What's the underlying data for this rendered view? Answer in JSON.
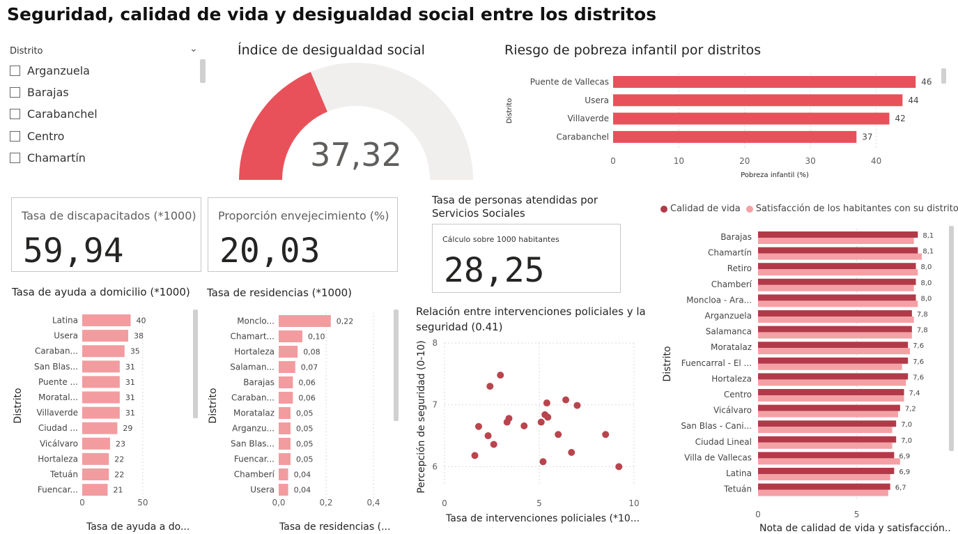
{
  "page_title": "Seguridad, calidad de vida y desigualdad social entre los distritos",
  "colors": {
    "red": "#e8515a",
    "pink": "#f29ca0",
    "maroon": "#b8454d",
    "dark_red": "#b23a48",
    "light_pink": "#f4a1a6",
    "gray": "#f0efee"
  },
  "slicer": {
    "header": "Distrito",
    "items": [
      "Arganzuela",
      "Barajas",
      "Carabanchel",
      "Centro",
      "Chamartín"
    ]
  },
  "gauge": {
    "title": "Índice de desigualdad social",
    "value": 37.32,
    "value_label": "37,32",
    "max": 100
  },
  "cards": {
    "disability": {
      "label": "Tasa de discapacitados (*1000)",
      "value": "59,94"
    },
    "aging": {
      "label": "Proporción envejecimiento (%)",
      "value": "20,03"
    },
    "social": {
      "title": "Tasa de personas atendidas por Servicios Sociales",
      "subtitle": "Cálculo sobre 1000 habitantes",
      "value": "28,25"
    }
  },
  "chart_data": [
    {
      "id": "poverty",
      "type": "bar",
      "orientation": "horizontal",
      "title": "Riesgo de pobreza infantil por distritos",
      "xlabel": "Pobreza infantil (%)",
      "ylabel": "Distrito",
      "categories": [
        "Puente de Vallecas",
        "Usera",
        "Villaverde",
        "Carabanchel"
      ],
      "values": [
        46,
        44,
        42,
        37
      ],
      "labels": [
        "46",
        "44",
        "42",
        "37"
      ],
      "xlim": [
        0,
        50
      ],
      "xticks": [
        0,
        10,
        20,
        30,
        40
      ],
      "xtick_labels": [
        "0",
        "10",
        "20",
        "30",
        "40"
      ]
    },
    {
      "id": "home_help",
      "type": "bar",
      "orientation": "horizontal",
      "title": "Tasa de ayuda a domicilio (*1000)",
      "xlabel": "Tasa de ayuda a do...",
      "ylabel": "Distrito",
      "categories": [
        "Latina",
        "Usera",
        "Caraban...",
        "San Blas...",
        "Puente ...",
        "Moratal...",
        "Villaverde",
        "Ciudad ...",
        "Vicálvaro",
        "Hortaleza",
        "Tetuán",
        "Fuencar..."
      ],
      "values": [
        40,
        38,
        35,
        31,
        31,
        31,
        31,
        29,
        23,
        22,
        22,
        21
      ],
      "labels": [
        "40",
        "38",
        "35",
        "31",
        "31",
        "31",
        "31",
        "29",
        "23",
        "22",
        "22",
        "21"
      ],
      "xlim": [
        0,
        80
      ],
      "xticks": [
        0,
        50
      ],
      "xtick_labels": [
        "0",
        "50"
      ]
    },
    {
      "id": "residences",
      "type": "bar",
      "orientation": "horizontal",
      "title": "Tasa de residencias (*1000)",
      "xlabel": "Tasa de residencias (...",
      "ylabel": "Distrito",
      "categories": [
        "Monclo...",
        "Chamart...",
        "Hortaleza",
        "Salaman...",
        "Barajas",
        "Caraban...",
        "Moratalaz",
        "Arganzu...",
        "San Blas...",
        "Fuencar...",
        "Chamberí",
        "Usera"
      ],
      "values": [
        0.22,
        0.1,
        0.08,
        0.07,
        0.06,
        0.06,
        0.05,
        0.05,
        0.05,
        0.05,
        0.04,
        0.04
      ],
      "labels": [
        "0,22",
        "0,10",
        "0,08",
        "0,07",
        "0,06",
        "0,06",
        "0,05",
        "0,05",
        "0,05",
        "0,05",
        "0,04",
        "0,04"
      ],
      "xlim": [
        0,
        0.5
      ],
      "xticks": [
        0,
        0.2,
        0.4
      ],
      "xtick_labels": [
        "0,0",
        "0,2",
        "0,4"
      ]
    },
    {
      "id": "police",
      "type": "scatter",
      "title": "Relación entre intervenciones policiales y la seguridad (0.41)",
      "xlabel": "Tasa de intervenciones policiales (*10...",
      "ylabel": "Percepción de seguridad (0-10)",
      "xlim": [
        0,
        10
      ],
      "ylim": [
        5.7,
        8
      ],
      "xticks": [
        0,
        5,
        10
      ],
      "yticks": [
        6,
        7,
        8
      ],
      "xtick_labels": [
        "0",
        "5",
        "10"
      ],
      "ytick_labels": [
        "6",
        "7",
        "8"
      ],
      "points": [
        {
          "x": 1.6,
          "y": 6.18
        },
        {
          "x": 1.8,
          "y": 6.65
        },
        {
          "x": 2.3,
          "y": 6.5
        },
        {
          "x": 2.4,
          "y": 7.3
        },
        {
          "x": 2.6,
          "y": 6.36
        },
        {
          "x": 2.95,
          "y": 7.48
        },
        {
          "x": 3.3,
          "y": 6.72
        },
        {
          "x": 3.4,
          "y": 6.78
        },
        {
          "x": 4.2,
          "y": 6.66
        },
        {
          "x": 5.1,
          "y": 6.72
        },
        {
          "x": 5.3,
          "y": 6.84
        },
        {
          "x": 5.4,
          "y": 7.03
        },
        {
          "x": 5.45,
          "y": 6.8
        },
        {
          "x": 5.2,
          "y": 6.08
        },
        {
          "x": 6.0,
          "y": 6.52
        },
        {
          "x": 6.4,
          "y": 7.08
        },
        {
          "x": 6.7,
          "y": 6.23
        },
        {
          "x": 7.0,
          "y": 6.99
        },
        {
          "x": 8.5,
          "y": 6.52
        },
        {
          "x": 9.2,
          "y": 6.0
        }
      ]
    },
    {
      "id": "quality",
      "type": "bar",
      "orientation": "horizontal",
      "xlabel": "Nota de calidad de vida y satisfacción...",
      "ylabel": "Distrito",
      "categories": [
        "Barajas",
        "Chamartín",
        "Retiro",
        "Chamberí",
        "Moncloa - Ara...",
        "Arganzuela",
        "Salamanca",
        "Moratalaz",
        "Fuencarral - El ...",
        "Hortaleza",
        "Centro",
        "Vicálvaro",
        "San Blas - Cani...",
        "Ciudad Lineal",
        "Villa de Vallecas",
        "Latina",
        "Tetuán"
      ],
      "series": [
        {
          "name": "Calidad de vida",
          "values": [
            8.1,
            8.1,
            8.0,
            8.0,
            8.0,
            7.8,
            7.8,
            7.6,
            7.6,
            7.6,
            7.4,
            7.2,
            7.0,
            7.0,
            6.9,
            6.9,
            6.7
          ],
          "labels": [
            "8,1",
            "8,1",
            "8,0",
            "8,0",
            "8,0",
            "7,8",
            "7,8",
            "7,6",
            "7,6",
            "7,6",
            "7,4",
            "7,2",
            "7,0",
            "7,0",
            "6,9",
            "6,9",
            "6,7"
          ]
        },
        {
          "name": "Satisfacción de los habitantes con su distrito",
          "values": [
            7.9,
            8.3,
            8.1,
            7.9,
            8.1,
            7.9,
            7.8,
            7.7,
            7.3,
            7.5,
            7.4,
            7.1,
            6.8,
            6.8,
            7.2,
            6.7,
            6.6
          ]
        }
      ],
      "xlim": [
        0,
        9.5
      ],
      "xticks": [
        0,
        5
      ],
      "xtick_labels": [
        "0",
        "5"
      ],
      "legend": "top-left"
    }
  ]
}
